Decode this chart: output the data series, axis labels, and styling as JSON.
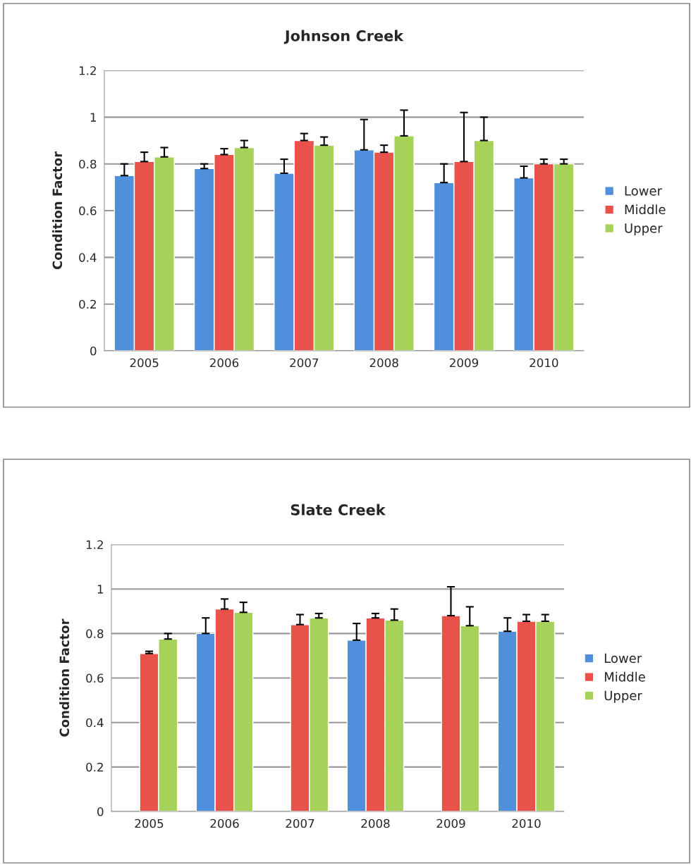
{
  "chart_data": [
    {
      "type": "bar",
      "title": "Johnson Creek",
      "ylabel": "Condition Factor",
      "categories": [
        "2005",
        "2006",
        "2007",
        "2008",
        "2009",
        "2010"
      ],
      "ylim": [
        0,
        1.2
      ],
      "yticks": [
        0,
        0.2,
        0.4,
        0.6,
        0.8,
        1,
        1.2
      ],
      "grid": "y",
      "legend": "right",
      "series": [
        {
          "name": "Lower",
          "color": "#4f8fdb",
          "values": [
            0.75,
            0.78,
            0.76,
            0.86,
            0.72,
            0.74
          ],
          "errors": [
            [
              0.75,
              0.8
            ],
            [
              0.78,
              0.8
            ],
            [
              0.76,
              0.82
            ],
            [
              0.86,
              0.99
            ],
            [
              0.72,
              0.8
            ],
            [
              0.74,
              0.79
            ]
          ]
        },
        {
          "name": "Middle",
          "color": "#e8524a",
          "values": [
            0.81,
            0.84,
            0.9,
            0.85,
            0.81,
            0.8
          ],
          "errors": [
            [
              0.81,
              0.85
            ],
            [
              0.84,
              0.865
            ],
            [
              0.9,
              0.93
            ],
            [
              0.85,
              0.88
            ],
            [
              0.81,
              1.02
            ],
            [
              0.8,
              0.82
            ]
          ]
        },
        {
          "name": "Upper",
          "color": "#a6d25a",
          "values": [
            0.83,
            0.87,
            0.88,
            0.92,
            0.9,
            0.8
          ],
          "errors": [
            [
              0.83,
              0.87
            ],
            [
              0.87,
              0.9
            ],
            [
              0.88,
              0.915
            ],
            [
              0.92,
              1.03
            ],
            [
              0.9,
              1.0
            ],
            [
              0.8,
              0.82
            ]
          ]
        }
      ]
    },
    {
      "type": "bar",
      "title": "Slate Creek",
      "ylabel": "Condition Factor",
      "categories": [
        "2005",
        "2006",
        "2007",
        "2008",
        "2009",
        "2010"
      ],
      "ylim": [
        0,
        1.2
      ],
      "yticks": [
        0,
        0.2,
        0.4,
        0.6,
        0.8,
        1,
        1.2
      ],
      "grid": "y",
      "legend": "right",
      "series": [
        {
          "name": "Lower",
          "color": "#4f8fdb",
          "values": [
            null,
            0.8,
            null,
            0.77,
            null,
            0.81
          ],
          "errors": [
            null,
            [
              0.8,
              0.87
            ],
            null,
            [
              0.77,
              0.845
            ],
            null,
            [
              0.81,
              0.87
            ]
          ]
        },
        {
          "name": "Middle",
          "color": "#e8524a",
          "values": [
            0.71,
            0.91,
            0.84,
            0.87,
            0.88,
            0.855
          ],
          "errors": [
            [
              0.71,
              0.72
            ],
            [
              0.91,
              0.955
            ],
            [
              0.84,
              0.885
            ],
            [
              0.87,
              0.89
            ],
            [
              0.88,
              1.01
            ],
            [
              0.855,
              0.885
            ]
          ]
        },
        {
          "name": "Upper",
          "color": "#a6d25a",
          "values": [
            0.775,
            0.895,
            0.87,
            0.86,
            0.835,
            0.855
          ],
          "errors": [
            [
              0.775,
              0.8
            ],
            [
              0.895,
              0.94
            ],
            [
              0.87,
              0.89
            ],
            [
              0.86,
              0.91
            ],
            [
              0.835,
              0.92
            ],
            [
              0.855,
              0.885
            ]
          ]
        }
      ]
    }
  ]
}
